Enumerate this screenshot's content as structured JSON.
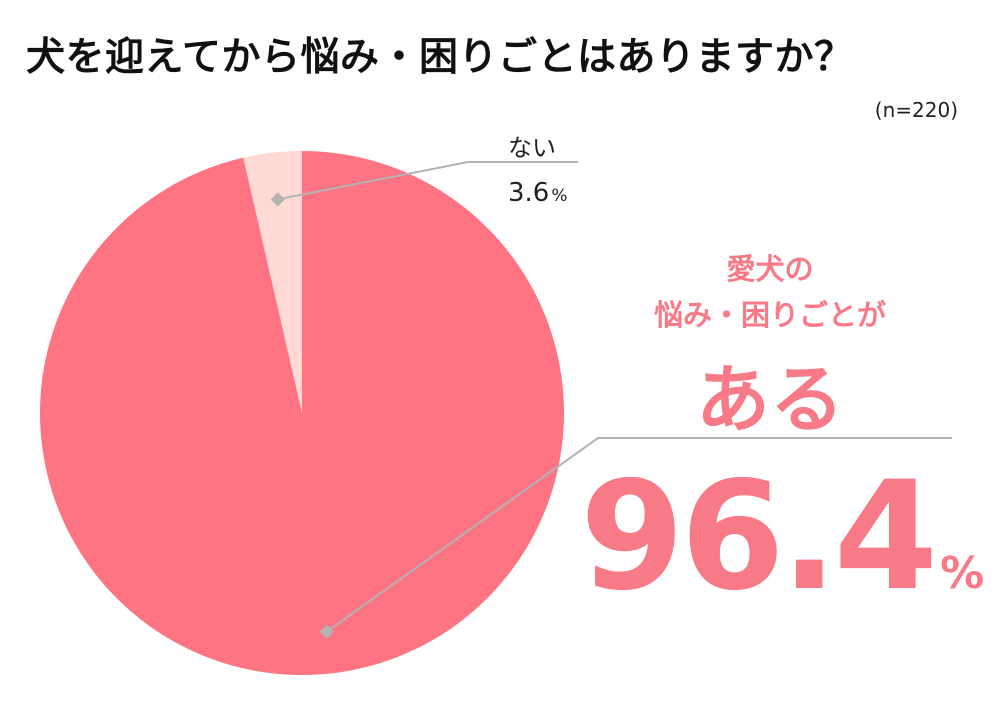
{
  "title": "犬を迎えてから悩み・困りごとはありますか？",
  "sample_size": "(n=220)",
  "colors": {
    "primary": "#ff7482",
    "secondary": "#ffd9d3",
    "accent_text": "#f77a86",
    "leader_line": "#b3b3b3"
  },
  "chart_data": {
    "type": "pie",
    "title": "犬を迎えてから悩み・困りごとはありますか？",
    "slices": [
      {
        "label": "ない",
        "value": 3.6,
        "display_value": "3.6",
        "unit": "%"
      },
      {
        "label_lines": [
          "愛犬の",
          "悩み・困りごとが"
        ],
        "label_emphasis": "ある",
        "value": 96.4,
        "display_value": "96.4",
        "unit": "%"
      }
    ]
  }
}
